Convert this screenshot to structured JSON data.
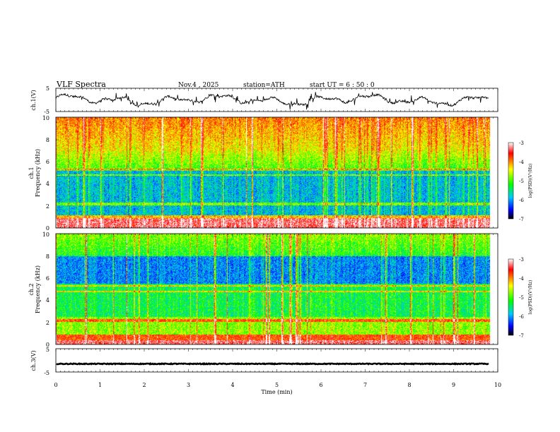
{
  "header": {
    "title": "VLF  Spectra",
    "date": "Nov.4  , 2025",
    "station": "station=ATH",
    "start": "start  UT  =   6  : 50 : 0"
  },
  "chart_data": {
    "type": "heatmap",
    "xaxis": {
      "label": "Time  (min)",
      "range": [
        0,
        10
      ],
      "ticks": [
        "0",
        "1",
        "2",
        "3",
        "4",
        "5",
        "6",
        "7",
        "8",
        "9",
        "10"
      ]
    },
    "panels": [
      {
        "id": "ch1-waveform",
        "type": "line",
        "ylabel": "ch.1(V)",
        "yticks": [
          "5",
          "-5"
        ],
        "ylim": [
          -5,
          5
        ],
        "data_end_min": 9.8
      },
      {
        "id": "ch1-spectrogram",
        "type": "heatmap",
        "ylabel": [
          "ch.1",
          "Frequency  (kHz)"
        ],
        "ylim": [
          0,
          10
        ],
        "yticks": [
          "10",
          "8",
          "6",
          "4",
          "2",
          "0"
        ],
        "colorbar": {
          "label": "log(PSD)(V²/Hz)",
          "ticks": [
            "-3",
            "-4",
            "-5",
            "-6",
            "-7"
          ],
          "range": [
            -7,
            -3
          ]
        }
      },
      {
        "id": "ch2-spectrogram",
        "type": "heatmap",
        "ylabel": [
          "ch.2",
          "Frequency  (kHz)"
        ],
        "ylim": [
          0,
          10
        ],
        "yticks": [
          "10",
          "8",
          "6",
          "4",
          "2",
          "0"
        ],
        "colorbar": {
          "label": "log(PSD)(V²/Hz)",
          "ticks": [
            "-3",
            "-4",
            "-5",
            "-6",
            "-7"
          ],
          "range": [
            -7,
            -3
          ]
        }
      },
      {
        "id": "ch3-waveform",
        "type": "line",
        "ylabel": "ch.3(V)",
        "yticks": [
          "5",
          "-5"
        ],
        "ylim": [
          -5,
          5
        ],
        "level_v": -1.5
      }
    ],
    "colormap": [
      "#000000",
      "#0000ff",
      "#00c8ff",
      "#00ff00",
      "#ffff00",
      "#ff0000",
      "#ffffff"
    ]
  }
}
